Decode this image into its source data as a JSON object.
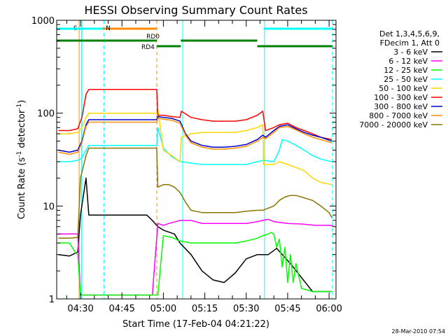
{
  "chart_data": {
    "type": "line",
    "title": "HESSI Observing Summary Count Rates",
    "xlabel": "Start Time (17-Feb-04 04:21:22)",
    "ylabel": "Count Rate (s",
    "ylabel_sup": "-1",
    "ylabel_mid": " detector",
    "ylabel_end": ")",
    "yscale": "log",
    "ylim": [
      1,
      1000
    ],
    "xlim_minutes": [
      261.37,
      362.5
    ],
    "y_ticks": [
      {
        "value": 1,
        "label": "1"
      },
      {
        "value": 10,
        "label": "10"
      },
      {
        "value": 100,
        "label": "100"
      },
      {
        "value": 1000,
        "label": "1000"
      }
    ],
    "x_ticks": [
      {
        "value": 270,
        "label": "04:30"
      },
      {
        "value": 285,
        "label": "04:45"
      },
      {
        "value": 300,
        "label": "05:00"
      },
      {
        "value": 315,
        "label": "05:15"
      },
      {
        "value": 330,
        "label": "05:30"
      },
      {
        "value": 345,
        "label": "05:45"
      },
      {
        "value": 360,
        "label": "06:00"
      }
    ],
    "legend_header": [
      "Det 1,3,4,5,6,9,",
      "FDecim 1, Att 0"
    ],
    "legend_position": "right",
    "series": [
      {
        "name": "3 - 6 keV",
        "color": "#000000",
        "x": [
          262,
          266,
          269,
          270,
          272,
          273,
          285,
          294,
          296,
          298,
          300,
          304,
          306,
          310,
          314,
          318,
          322,
          326,
          330,
          334,
          338,
          341,
          346,
          354,
          361
        ],
        "y": [
          3,
          2.9,
          3.2,
          8,
          20,
          8,
          8,
          8,
          7,
          6,
          5.5,
          5,
          4,
          3,
          2,
          1.6,
          1.5,
          1.9,
          2.7,
          3,
          3,
          3.5,
          2.4,
          1.2,
          1.2
        ]
      },
      {
        "name": "6 - 12 keV",
        "color": "#ff00ff",
        "x": [
          262,
          266,
          269,
          270,
          296,
          298,
          300,
          302,
          306,
          310,
          314,
          318,
          322,
          326,
          330,
          334,
          336,
          338,
          340,
          345,
          350,
          355,
          360,
          361.5
        ],
        "y": [
          5,
          5,
          5,
          1.1,
          1.1,
          6.5,
          6.2,
          6.5,
          7,
          7,
          6.5,
          6.5,
          6.5,
          6.5,
          6.5,
          6.8,
          7,
          7.2,
          6.8,
          6.5,
          6.4,
          6.2,
          6.2,
          6.1
        ]
      },
      {
        "name": "12 - 25 keV",
        "color": "#00ff00",
        "x": [
          262,
          266,
          268,
          269,
          270,
          298,
          300,
          303,
          306,
          310,
          314,
          318,
          322,
          326,
          330,
          334,
          336,
          338,
          339,
          340,
          341,
          342,
          343,
          344,
          345,
          346,
          347,
          348,
          350,
          354,
          361
        ],
        "y": [
          4,
          4,
          3.2,
          3,
          1.1,
          1.1,
          4.8,
          4.6,
          4.2,
          4,
          4,
          4,
          4,
          4,
          4.2,
          4.5,
          4.8,
          5,
          5.2,
          5,
          3.6,
          4.4,
          2.2,
          3.6,
          1.5,
          3,
          1.5,
          2.4,
          1.3,
          1.2,
          1.2
        ]
      },
      {
        "name": "25 - 50 keV",
        "color": "#00ffff",
        "x": [
          262,
          266,
          269,
          270.5,
          272,
          273,
          297.6,
          298,
          300,
          303,
          306,
          306.5,
          310,
          314,
          318,
          322,
          326,
          330,
          334,
          336,
          336.3,
          340,
          342,
          343,
          345,
          348,
          351,
          354,
          357,
          361
        ],
        "y": [
          30,
          30,
          31,
          33,
          40,
          45,
          45,
          70,
          42,
          34,
          30,
          30,
          29,
          28,
          28,
          28,
          28,
          28,
          30,
          31,
          31,
          30,
          40,
          52,
          50,
          45,
          40,
          35,
          32,
          30
        ]
      },
      {
        "name": "50 - 100 keV",
        "color": "#ffd700",
        "x": [
          262,
          266,
          269,
          270.5,
          272,
          273,
          297.6,
          298,
          300,
          303,
          306,
          306.5,
          310,
          314,
          318,
          322,
          326,
          330,
          334,
          336,
          336.3,
          340,
          342,
          345,
          348,
          351,
          354,
          357,
          361
        ],
        "y": [
          60,
          60,
          62,
          70,
          90,
          100,
          100,
          110,
          40,
          35,
          30,
          55,
          60,
          62,
          62,
          62,
          62,
          65,
          70,
          75,
          28,
          28,
          30,
          28,
          26,
          24,
          20,
          18,
          17
        ]
      },
      {
        "name": "100 - 300 keV",
        "color": "#ff0000",
        "x": [
          262,
          266,
          269,
          270.5,
          272,
          273,
          297.6,
          298,
          300,
          303,
          306,
          306.5,
          310,
          314,
          318,
          322,
          326,
          330,
          334,
          336,
          337,
          340,
          342,
          345,
          348,
          351,
          354,
          357,
          361
        ],
        "y": [
          65,
          65,
          68,
          90,
          160,
          180,
          180,
          95,
          95,
          92,
          90,
          105,
          90,
          85,
          82,
          82,
          82,
          85,
          95,
          105,
          65,
          70,
          75,
          78,
          70,
          65,
          60,
          55,
          52
        ]
      },
      {
        "name": "300 - 800 keV",
        "color": "#0000cd",
        "x": [
          262,
          266,
          269,
          270.5,
          272,
          273,
          297.6,
          298,
          300,
          303,
          306,
          308,
          310,
          314,
          318,
          322,
          326,
          330,
          334,
          336,
          337,
          340,
          342,
          345,
          348,
          351,
          354,
          357,
          361
        ],
        "y": [
          40,
          38,
          40,
          50,
          75,
          85,
          85,
          92,
          90,
          88,
          82,
          60,
          50,
          45,
          43,
          43,
          44,
          46,
          52,
          58,
          55,
          65,
          72,
          75,
          68,
          62,
          58,
          55,
          50
        ]
      },
      {
        "name": "800 - 7000 keV",
        "color": "#ff8c00",
        "x": [
          262,
          266,
          269,
          270.5,
          272,
          273,
          297.6,
          298,
          300,
          303,
          306,
          308,
          310,
          314,
          318,
          322,
          326,
          330,
          334,
          336,
          337,
          340,
          342,
          345,
          348,
          351,
          354,
          357,
          361
        ],
        "y": [
          38,
          36,
          38,
          48,
          72,
          80,
          80,
          88,
          86,
          84,
          78,
          58,
          48,
          43,
          41,
          41,
          42,
          44,
          50,
          55,
          53,
          62,
          70,
          72,
          66,
          60,
          55,
          52,
          48
        ]
      },
      {
        "name": "7000 - 20000 keV",
        "color": "#8b7500",
        "x": [
          262,
          266,
          269,
          270,
          272,
          273,
          297.6,
          298,
          300,
          302,
          304,
          306,
          308,
          310,
          314,
          318,
          322,
          326,
          330,
          334,
          336,
          338,
          340,
          342,
          344,
          346,
          348,
          350,
          354,
          357,
          360,
          361
        ],
        "y": [
          4.5,
          4.5,
          4.6,
          20,
          35,
          42,
          42,
          16,
          17,
          17,
          16,
          14,
          11,
          9,
          8.5,
          8.5,
          8.5,
          8.5,
          8.8,
          9,
          9,
          9.5,
          10,
          11.5,
          12.5,
          13,
          13,
          12.5,
          11.5,
          10,
          8.5,
          7.5
        ]
      }
    ],
    "segments": [
      {
        "label": "S",
        "color": "#ff8c00",
        "row": "top",
        "x0": 270,
        "x1": 297.6
      },
      {
        "label": "N",
        "color": "#00ffff",
        "row": "top",
        "x0": 261.4,
        "x1": 278
      },
      {
        "label": "",
        "color": "#00ffff",
        "row": "top",
        "x0": 336.3,
        "x1": 361.2
      },
      {
        "label": "RD0",
        "color": "#008000",
        "row": "middle",
        "x0": 261.4,
        "x1": 297.6
      },
      {
        "label": "",
        "color": "#008000",
        "row": "middle",
        "x0": 306.3,
        "x1": 334
      },
      {
        "label": "RD4",
        "color": "#008000",
        "row": "bottom",
        "x0": 297.6,
        "x1": 306.3
      },
      {
        "label": "",
        "color": "#008000",
        "row": "bottom",
        "x0": 334,
        "x1": 361.2
      }
    ],
    "event_lines": [
      {
        "x": 269.5,
        "color": "#ff8c00",
        "style": "solid"
      },
      {
        "x": 270.4,
        "color": "#00ffff",
        "style": "solid"
      },
      {
        "x": 278.5,
        "color": "#00ffff",
        "style": "dashed"
      },
      {
        "x": 297.6,
        "color": "#ff8c00",
        "style": "dashed"
      },
      {
        "x": 307.0,
        "color": "#00ffff",
        "style": "solid"
      },
      {
        "x": 336.6,
        "color": "#00ffff",
        "style": "solid"
      },
      {
        "x": 361.2,
        "color": "#00ffff",
        "style": "dashed"
      }
    ],
    "grid": false
  },
  "footer": {
    "timestamp": "28-Mar-2010 07:54"
  }
}
